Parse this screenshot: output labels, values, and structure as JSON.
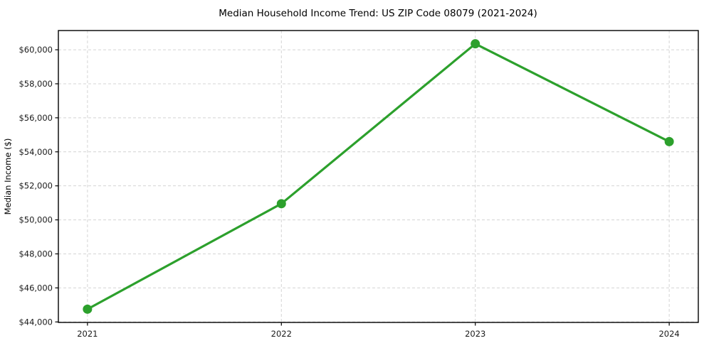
{
  "chart_data": {
    "type": "line",
    "title": "Median Household Income Trend: US ZIP Code 08079 (2021-2024)",
    "xlabel": "",
    "ylabel": "Median Income ($)",
    "x": [
      2021,
      2022,
      2023,
      2024
    ],
    "x_tick_labels": [
      "2021",
      "2022",
      "2023",
      "2024"
    ],
    "values": [
      44750,
      50950,
      60350,
      54600
    ],
    "y_ticks": [
      44000,
      46000,
      48000,
      50000,
      52000,
      54000,
      56000,
      58000,
      60000
    ],
    "y_tick_labels": [
      "$44,000",
      "$46,000",
      "$48,000",
      "$50,000",
      "$52,000",
      "$54,000",
      "$56,000",
      "$58,000",
      "$60,000"
    ],
    "xlim": [
      2020.85,
      2024.15
    ],
    "ylim": [
      43970,
      61130
    ],
    "grid": true,
    "grid_style": "dashed",
    "legend_position": "none",
    "colors": {
      "line": "#2ca02c",
      "marker": "#2ca02c",
      "grid": "#d4d4d4",
      "spine": "#000000",
      "tick": "#000000",
      "text": "#1a1a1a"
    }
  }
}
